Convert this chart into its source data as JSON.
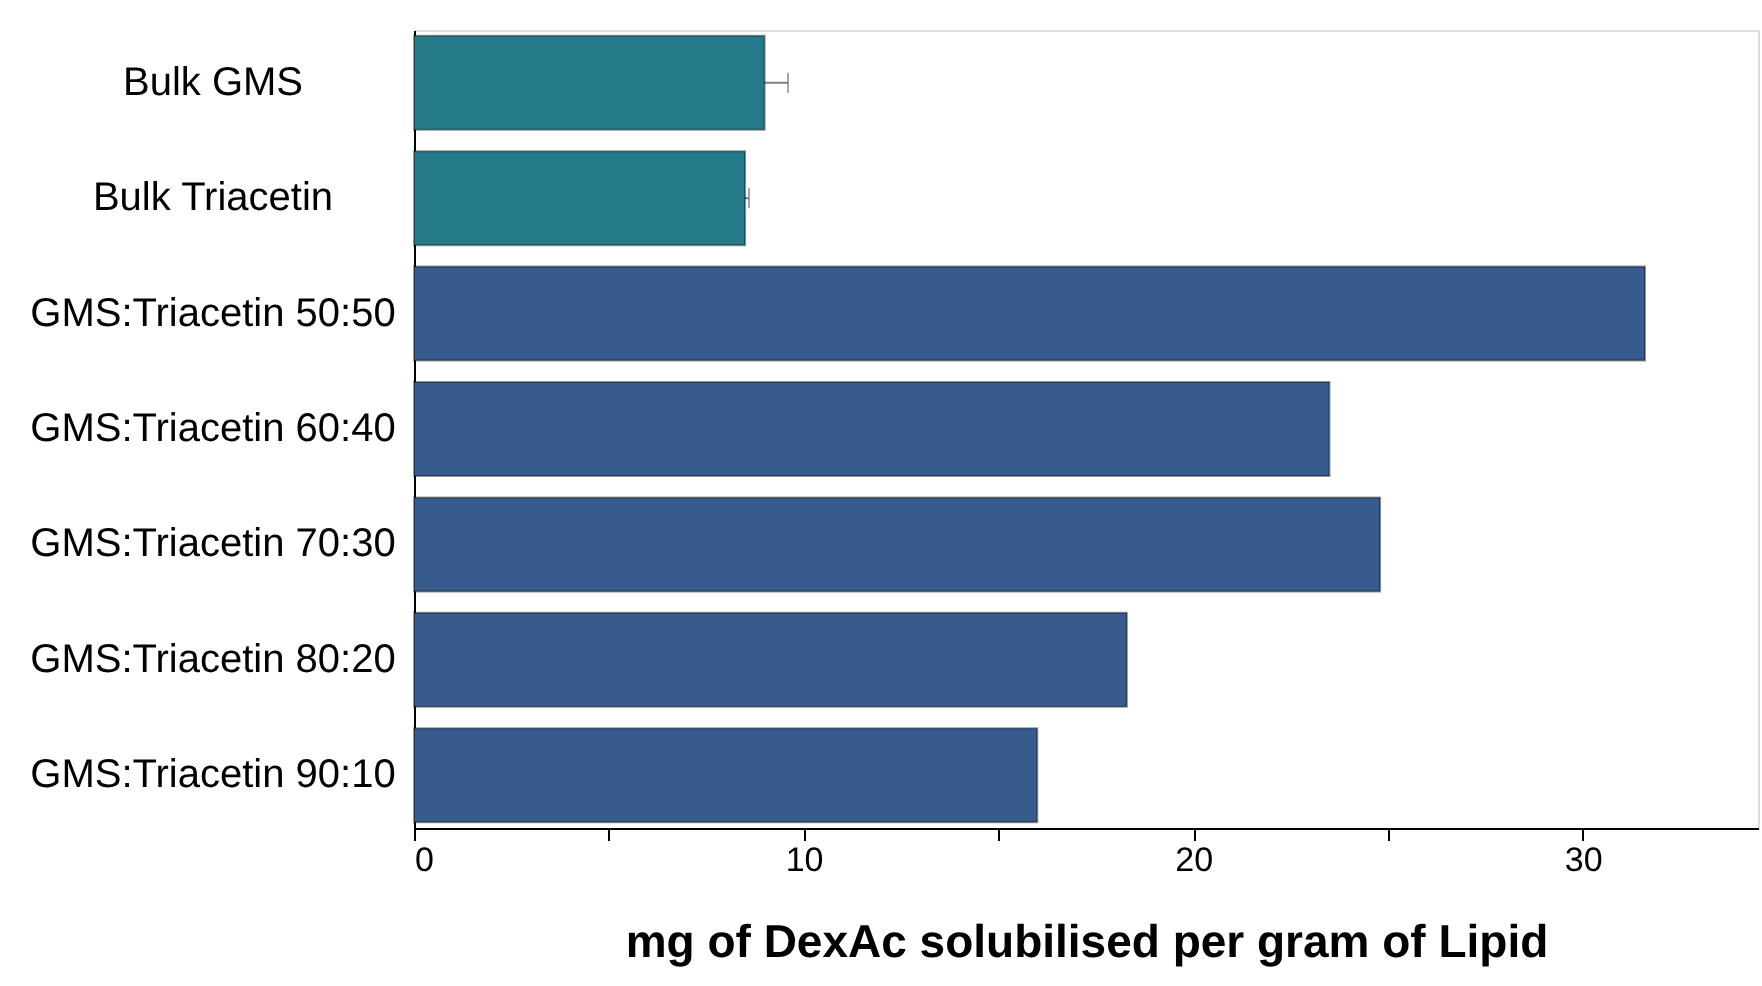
{
  "chart_data": {
    "type": "bar",
    "orientation": "horizontal",
    "xlabel": "mg of DexAc solubilised per gram of Lipid",
    "categories": [
      "Bulk GMS",
      "Bulk Triacetin",
      "GMS:Triacetin 50:50",
      "GMS:Triacetin 60:40",
      "GMS:Triacetin 70:30",
      "GMS:Triacetin 80:20",
      "GMS:Triacetin 90:10"
    ],
    "values": [
      9.0,
      8.5,
      31.6,
      23.5,
      24.8,
      18.3,
      16.0
    ],
    "colors": [
      "#267b8b",
      "#267b8b",
      "#365b8c",
      "#365b8c",
      "#365b8c",
      "#365b8c",
      "#365b8c"
    ],
    "errors": [
      0.6,
      0.1,
      null,
      null,
      null,
      null,
      null
    ],
    "xlim": [
      0,
      34.5
    ],
    "xticks": [
      0,
      {
        "value": 5,
        "label": null
      },
      10,
      {
        "value": 15,
        "label": null
      },
      20,
      {
        "value": 25,
        "label": null
      },
      30
    ]
  }
}
